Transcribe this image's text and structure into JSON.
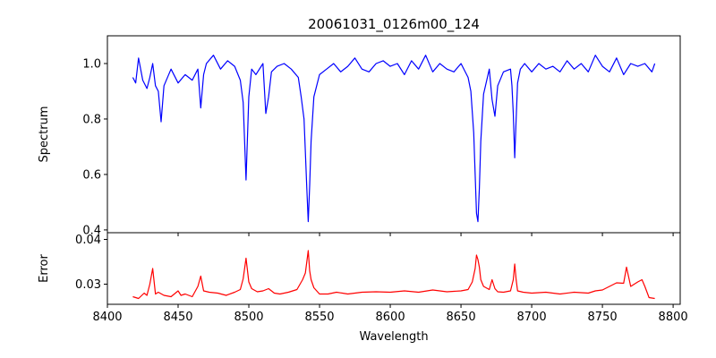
{
  "chart_data": [
    {
      "type": "line",
      "title": "20061031_0126m00_124",
      "xlabel": "",
      "ylabel": "Spectrum",
      "xlim": [
        8400,
        8805
      ],
      "ylim": [
        0.39,
        1.1
      ],
      "x_ticks": [
        8400,
        8450,
        8500,
        8550,
        8600,
        8650,
        8700,
        8750,
        8800
      ],
      "y_ticks": [
        0.4,
        0.6,
        0.8,
        1.0
      ],
      "y_tick_labels": [
        "0.4",
        "0.6",
        "0.8",
        "1.0"
      ],
      "grid": false,
      "series": [
        {
          "color": "#0000ff",
          "x": [
            8418,
            8420,
            8422,
            8425,
            8428,
            8430,
            8432,
            8434,
            8436,
            8438,
            8440,
            8445,
            8450,
            8455,
            8460,
            8464,
            8466,
            8468,
            8470,
            8475,
            8480,
            8485,
            8490,
            8494,
            8496,
            8498,
            8500,
            8502,
            8505,
            8510,
            8512,
            8514,
            8516,
            8520,
            8525,
            8530,
            8535,
            8537,
            8539,
            8540,
            8541,
            8542,
            8543,
            8544,
            8546,
            8550,
            8555,
            8560,
            8565,
            8570,
            8575,
            8580,
            8585,
            8590,
            8595,
            8600,
            8605,
            8610,
            8615,
            8620,
            8625,
            8630,
            8635,
            8640,
            8645,
            8650,
            8655,
            8657,
            8659,
            8660,
            8661,
            8662,
            8663,
            8664,
            8666,
            8670,
            8672,
            8674,
            8676,
            8680,
            8685,
            8686,
            8687,
            8688,
            8689,
            8690,
            8692,
            8695,
            8700,
            8705,
            8710,
            8715,
            8720,
            8725,
            8730,
            8735,
            8740,
            8745,
            8750,
            8755,
            8760,
            8765,
            8770,
            8775,
            8780,
            8785,
            8787
          ],
          "y": [
            0.95,
            0.93,
            1.02,
            0.94,
            0.91,
            0.95,
            1.0,
            0.92,
            0.9,
            0.79,
            0.92,
            0.98,
            0.93,
            0.96,
            0.94,
            0.98,
            0.84,
            0.96,
            1.0,
            1.03,
            0.98,
            1.01,
            0.99,
            0.94,
            0.86,
            0.58,
            0.88,
            0.98,
            0.96,
            1.0,
            0.82,
            0.88,
            0.97,
            0.99,
            1.0,
            0.98,
            0.95,
            0.88,
            0.8,
            0.68,
            0.55,
            0.43,
            0.56,
            0.72,
            0.88,
            0.96,
            0.98,
            1.0,
            0.97,
            0.99,
            1.02,
            0.98,
            0.97,
            1.0,
            1.01,
            0.99,
            1.0,
            0.96,
            1.01,
            0.98,
            1.03,
            0.97,
            1.0,
            0.98,
            0.97,
            1.0,
            0.95,
            0.9,
            0.75,
            0.6,
            0.46,
            0.43,
            0.55,
            0.72,
            0.89,
            0.98,
            0.87,
            0.81,
            0.92,
            0.97,
            0.98,
            0.92,
            0.82,
            0.66,
            0.8,
            0.93,
            0.98,
            1.0,
            0.97,
            1.0,
            0.98,
            0.99,
            0.97,
            1.01,
            0.98,
            1.0,
            0.97,
            1.03,
            0.99,
            0.97,
            1.02,
            0.96,
            1.0,
            0.99,
            1.0,
            0.97,
            1.0
          ]
        }
      ]
    },
    {
      "type": "line",
      "title": "",
      "xlabel": "Wavelength",
      "ylabel": "Error",
      "xlim": [
        8400,
        8805
      ],
      "ylim": [
        0.0255,
        0.0415
      ],
      "x_ticks": [
        8400,
        8450,
        8500,
        8550,
        8600,
        8650,
        8700,
        8750,
        8800
      ],
      "x_tick_labels": [
        "8400",
        "8450",
        "8500",
        "8550",
        "8600",
        "8650",
        "8700",
        "8750",
        "8800"
      ],
      "y_ticks": [
        0.03,
        0.04
      ],
      "y_tick_labels": [
        "0.03",
        "0.04"
      ],
      "grid": false,
      "series": [
        {
          "color": "#ff0000",
          "x": [
            8418,
            8422,
            8426,
            8428,
            8430,
            8432,
            8434,
            8436,
            8440,
            8445,
            8450,
            8452,
            8455,
            8460,
            8464,
            8466,
            8468,
            8472,
            8478,
            8484,
            8490,
            8494,
            8496,
            8498,
            8500,
            8502,
            8506,
            8510,
            8514,
            8518,
            8522,
            8528,
            8534,
            8538,
            8540,
            8541,
            8542,
            8543,
            8544,
            8546,
            8550,
            8556,
            8562,
            8570,
            8580,
            8590,
            8600,
            8610,
            8620,
            8630,
            8640,
            8650,
            8655,
            8658,
            8660,
            8661,
            8662,
            8663,
            8664,
            8666,
            8670,
            8672,
            8674,
            8676,
            8680,
            8685,
            8687,
            8688,
            8689,
            8690,
            8694,
            8700,
            8710,
            8720,
            8730,
            8740,
            8745,
            8750,
            8755,
            8760,
            8765,
            8767,
            8770,
            8775,
            8778,
            8780,
            8783,
            8787
          ],
          "y": [
            0.0272,
            0.0268,
            0.028,
            0.0275,
            0.03,
            0.0335,
            0.0278,
            0.0282,
            0.0275,
            0.0272,
            0.0285,
            0.0275,
            0.0278,
            0.0272,
            0.0295,
            0.0318,
            0.0285,
            0.0282,
            0.028,
            0.0275,
            0.0282,
            0.0288,
            0.0312,
            0.0358,
            0.0305,
            0.029,
            0.0283,
            0.0285,
            0.029,
            0.028,
            0.0278,
            0.0282,
            0.0288,
            0.031,
            0.0325,
            0.035,
            0.0375,
            0.033,
            0.031,
            0.0292,
            0.0278,
            0.0278,
            0.0282,
            0.0278,
            0.0282,
            0.0283,
            0.0282,
            0.0285,
            0.0282,
            0.0287,
            0.0283,
            0.0285,
            0.0288,
            0.0305,
            0.0335,
            0.0365,
            0.0355,
            0.0338,
            0.031,
            0.0295,
            0.0288,
            0.031,
            0.029,
            0.0283,
            0.0282,
            0.0285,
            0.031,
            0.0345,
            0.031,
            0.0285,
            0.0282,
            0.028,
            0.0282,
            0.0278,
            0.0282,
            0.028,
            0.0285,
            0.0287,
            0.0295,
            0.0303,
            0.0302,
            0.0338,
            0.0295,
            0.0305,
            0.031,
            0.0295,
            0.027,
            0.0268
          ]
        }
      ]
    }
  ]
}
